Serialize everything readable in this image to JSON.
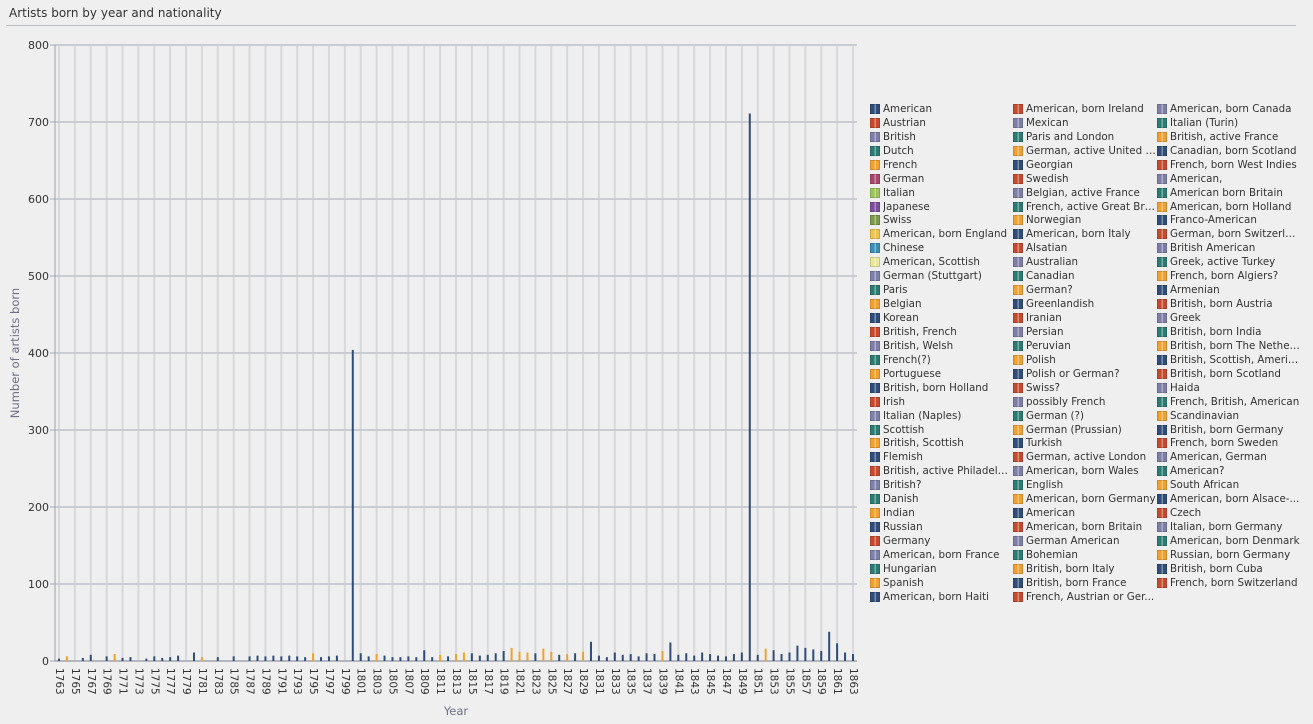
{
  "title": "Artists born by year and nationality",
  "colors": [
    "#2e4d7b",
    "#c9492d",
    "#7e7fa8",
    "#2b7c72",
    "#f3a12d",
    "#2d5a86",
    "#c0452e",
    "#8a8aae",
    "#2f8f7e",
    "#f5a02a"
  ],
  "chart_data": {
    "type": "bar",
    "title": "Artists born by year and nationality",
    "xlabel": "Year",
    "ylabel": "Number of artists born",
    "ylim": [
      0,
      800
    ],
    "yticks": [
      0,
      100,
      200,
      300,
      400,
      500,
      600,
      700,
      800
    ],
    "x_start": 1763,
    "x_end": 1863,
    "xtick_labels": [
      "1763",
      "1765",
      "1767",
      "1769",
      "1771",
      "1773",
      "1775",
      "1777",
      "1779",
      "1781",
      "1783",
      "1785",
      "1787",
      "1789",
      "1791",
      "1793",
      "1795",
      "1797",
      "1799",
      "1801",
      "1803",
      "1805",
      "1807",
      "1809",
      "1811",
      "1813",
      "1815",
      "1817",
      "1819",
      "1821",
      "1823",
      "1825",
      "1827",
      "1829",
      "1831",
      "1833",
      "1835",
      "1837",
      "1839",
      "1841",
      "1843",
      "1845",
      "1847",
      "1849",
      "1851",
      "1853",
      "1855",
      "1857",
      "1859",
      "1861",
      "1863"
    ],
    "bars": [
      {
        "year": 1763,
        "series": "American",
        "value": 3
      },
      {
        "year": 1764,
        "series": "French",
        "value": 6
      },
      {
        "year": 1766,
        "series": "American",
        "value": 4
      },
      {
        "year": 1767,
        "series": "American",
        "value": 8
      },
      {
        "year": 1769,
        "series": "American",
        "value": 6
      },
      {
        "year": 1770,
        "series": "French",
        "value": 9
      },
      {
        "year": 1771,
        "series": "American",
        "value": 4
      },
      {
        "year": 1772,
        "series": "American",
        "value": 5
      },
      {
        "year": 1774,
        "series": "American",
        "value": 3
      },
      {
        "year": 1775,
        "series": "American",
        "value": 6
      },
      {
        "year": 1776,
        "series": "American",
        "value": 4
      },
      {
        "year": 1777,
        "series": "American",
        "value": 5
      },
      {
        "year": 1778,
        "series": "American",
        "value": 7
      },
      {
        "year": 1780,
        "series": "American",
        "value": 11
      },
      {
        "year": 1781,
        "series": "French",
        "value": 5
      },
      {
        "year": 1783,
        "series": "American",
        "value": 5
      },
      {
        "year": 1785,
        "series": "American",
        "value": 6
      },
      {
        "year": 1787,
        "series": "American",
        "value": 6
      },
      {
        "year": 1788,
        "series": "American",
        "value": 7
      },
      {
        "year": 1789,
        "series": "American",
        "value": 6
      },
      {
        "year": 1790,
        "series": "American",
        "value": 7
      },
      {
        "year": 1791,
        "series": "American",
        "value": 6
      },
      {
        "year": 1792,
        "series": "American",
        "value": 7
      },
      {
        "year": 1793,
        "series": "American",
        "value": 6
      },
      {
        "year": 1794,
        "series": "American",
        "value": 5
      },
      {
        "year": 1795,
        "series": "French",
        "value": 10
      },
      {
        "year": 1796,
        "series": "American",
        "value": 5
      },
      {
        "year": 1797,
        "series": "American",
        "value": 6
      },
      {
        "year": 1798,
        "series": "American",
        "value": 7
      },
      {
        "year": 1800,
        "series": "American",
        "value": 404
      },
      {
        "year": 1801,
        "series": "American",
        "value": 10
      },
      {
        "year": 1802,
        "series": "American",
        "value": 6
      },
      {
        "year": 1803,
        "series": "French",
        "value": 9
      },
      {
        "year": 1804,
        "series": "American",
        "value": 7
      },
      {
        "year": 1805,
        "series": "American",
        "value": 5
      },
      {
        "year": 1806,
        "series": "American",
        "value": 5
      },
      {
        "year": 1807,
        "series": "American",
        "value": 6
      },
      {
        "year": 1808,
        "series": "American",
        "value": 5
      },
      {
        "year": 1809,
        "series": "American",
        "value": 14
      },
      {
        "year": 1810,
        "series": "American",
        "value": 5
      },
      {
        "year": 1811,
        "series": "French",
        "value": 8
      },
      {
        "year": 1812,
        "series": "American",
        "value": 6
      },
      {
        "year": 1813,
        "series": "French",
        "value": 9
      },
      {
        "year": 1814,
        "series": "French",
        "value": 11
      },
      {
        "year": 1815,
        "series": "American",
        "value": 10
      },
      {
        "year": 1816,
        "series": "American",
        "value": 7
      },
      {
        "year": 1817,
        "series": "American",
        "value": 8
      },
      {
        "year": 1818,
        "series": "American",
        "value": 10
      },
      {
        "year": 1819,
        "series": "American",
        "value": 13
      },
      {
        "year": 1820,
        "series": "French",
        "value": 17
      },
      {
        "year": 1821,
        "series": "French",
        "value": 12
      },
      {
        "year": 1822,
        "series": "French",
        "value": 11
      },
      {
        "year": 1823,
        "series": "American",
        "value": 10
      },
      {
        "year": 1824,
        "series": "French",
        "value": 16
      },
      {
        "year": 1825,
        "series": "French",
        "value": 12
      },
      {
        "year": 1826,
        "series": "American",
        "value": 8
      },
      {
        "year": 1827,
        "series": "French",
        "value": 9
      },
      {
        "year": 1828,
        "series": "American",
        "value": 10
      },
      {
        "year": 1829,
        "series": "French",
        "value": 12
      },
      {
        "year": 1830,
        "series": "American",
        "value": 25
      },
      {
        "year": 1831,
        "series": "American",
        "value": 7
      },
      {
        "year": 1832,
        "series": "American",
        "value": 5
      },
      {
        "year": 1833,
        "series": "American",
        "value": 11
      },
      {
        "year": 1834,
        "series": "American",
        "value": 8
      },
      {
        "year": 1835,
        "series": "American",
        "value": 9
      },
      {
        "year": 1836,
        "series": "American",
        "value": 6
      },
      {
        "year": 1837,
        "series": "American",
        "value": 10
      },
      {
        "year": 1838,
        "series": "American",
        "value": 9
      },
      {
        "year": 1839,
        "series": "French",
        "value": 13
      },
      {
        "year": 1840,
        "series": "American",
        "value": 24
      },
      {
        "year": 1841,
        "series": "American",
        "value": 8
      },
      {
        "year": 1842,
        "series": "American",
        "value": 10
      },
      {
        "year": 1843,
        "series": "American",
        "value": 7
      },
      {
        "year": 1844,
        "series": "American",
        "value": 11
      },
      {
        "year": 1845,
        "series": "American",
        "value": 9
      },
      {
        "year": 1846,
        "series": "American",
        "value": 7
      },
      {
        "year": 1847,
        "series": "American",
        "value": 6
      },
      {
        "year": 1848,
        "series": "American",
        "value": 9
      },
      {
        "year": 1849,
        "series": "American",
        "value": 11
      },
      {
        "year": 1850,
        "series": "American",
        "value": 711
      },
      {
        "year": 1851,
        "series": "American",
        "value": 8
      },
      {
        "year": 1852,
        "series": "French",
        "value": 16
      },
      {
        "year": 1853,
        "series": "American",
        "value": 14
      },
      {
        "year": 1854,
        "series": "American",
        "value": 9
      },
      {
        "year": 1855,
        "series": "American",
        "value": 11
      },
      {
        "year": 1856,
        "series": "American",
        "value": 20
      },
      {
        "year": 1857,
        "series": "American",
        "value": 17
      },
      {
        "year": 1858,
        "series": "American",
        "value": 15
      },
      {
        "year": 1859,
        "series": "American",
        "value": 13
      },
      {
        "year": 1860,
        "series": "American",
        "value": 38
      },
      {
        "year": 1861,
        "series": "American",
        "value": 23
      },
      {
        "year": 1862,
        "series": "American",
        "value": 11
      },
      {
        "year": 1863,
        "series": "American",
        "value": 9
      }
    ]
  },
  "legend": [
    "American",
    "Austrian",
    "British",
    "Dutch",
    "French",
    "German",
    "Italian",
    "Japanese",
    "Swiss",
    "American, born England",
    "Chinese",
    "American, Scottish",
    "German (Stuttgart)",
    "Paris",
    "Belgian",
    "Korean",
    "British, French",
    "British, Welsh",
    "French(?)",
    "Portuguese",
    "British, born Holland",
    "Irish",
    "Italian (Naples)",
    "Scottish",
    "British, Scottish",
    "Flemish",
    "British, active Philadelphia",
    "British?",
    "Danish",
    "Indian",
    "Russian",
    "Germany",
    "American, born France",
    "Hungarian",
    "Spanish",
    "American, born Haiti",
    "American, born Ireland",
    "Mexican",
    "Paris and London",
    "German, active United S...",
    "Georgian",
    "Swedish",
    "Belgian, active France",
    "French, active Great Brit...",
    "Norwegian",
    "American, born Italy",
    "Alsatian",
    "Australian",
    "Canadian",
    "German?",
    "Greenlandish",
    "Iranian",
    "Persian",
    "Peruvian",
    "Polish",
    "Polish or German?",
    "Swiss?",
    "possibly French",
    "German (?)",
    "German (Prussian)",
    "Turkish",
    "German, active London",
    "American, born Wales",
    "English",
    "American, born Germany",
    "American",
    "American, born Britain",
    "German American",
    "Bohemian",
    "British, born Italy",
    "British, born France",
    "French, Austrian or Ger...",
    "American, born Canada",
    "Italian (Turin)",
    "British, active France",
    "Canadian, born Scotland",
    "French, born West Indies",
    "American,",
    "American born Britain",
    "American, born Holland",
    "Franco-American",
    "German, born Switzerland",
    "British American",
    "Greek, active Turkey",
    "French, born Algiers?",
    "Armenian",
    "British, born Austria",
    "Greek",
    "British, born India",
    "British, born The Netherl...",
    "British, Scottish, American",
    "British, born Scotland",
    "Haida",
    "French, British, American",
    "Scandinavian",
    "British, born Germany",
    "French, born Sweden",
    "American, German",
    "American?",
    "South African",
    "American, born Alsace-...",
    "Czech",
    "Italian, born Germany",
    "American, born Denmark",
    "Russian, born Germany",
    "British, born Cuba",
    "French, born Switzerland"
  ],
  "legend_colors": [
    "#2e4d7b",
    "#c9492d",
    "#7e7fa8",
    "#2b7c72",
    "#f3a12d",
    "#a8466b",
    "#9cc45a",
    "#7a4e9c",
    "#7c9a4a",
    "#f2c34a",
    "#3a8fb5",
    "#e9e79a",
    "#7e7fa8",
    "#2b7c72",
    "#f3a12d",
    "#2e4d7b",
    "#c9492d",
    "#7e7fa8",
    "#2b7c72",
    "#f3a12d",
    "#2e4d7b",
    "#c9492d",
    "#7e7fa8",
    "#2b7c72",
    "#f3a12d",
    "#2e4d7b",
    "#c9492d",
    "#7e7fa8",
    "#2b7c72",
    "#f3a12d",
    "#2e4d7b",
    "#c9492d",
    "#7e7fa8",
    "#2b7c72",
    "#f3a12d",
    "#2e4d7b",
    "#c9492d",
    "#7e7fa8",
    "#2b7c72",
    "#f3a12d",
    "#2e4d7b",
    "#c9492d",
    "#7e7fa8",
    "#2b7c72",
    "#f3a12d",
    "#2e4d7b",
    "#c9492d",
    "#7e7fa8",
    "#2b7c72",
    "#f3a12d",
    "#2e4d7b",
    "#c9492d",
    "#7e7fa8",
    "#2b7c72",
    "#f3a12d",
    "#2e4d7b",
    "#c9492d",
    "#7e7fa8",
    "#2b7c72",
    "#f3a12d",
    "#2e4d7b",
    "#c9492d",
    "#7e7fa8",
    "#2b7c72",
    "#f3a12d",
    "#2e4d7b",
    "#c9492d",
    "#7e7fa8",
    "#2b7c72",
    "#f3a12d",
    "#2e4d7b",
    "#c9492d",
    "#7e7fa8",
    "#2b7c72",
    "#f3a12d",
    "#2e4d7b",
    "#c9492d",
    "#7e7fa8",
    "#2b7c72",
    "#f3a12d",
    "#2e4d7b",
    "#c9492d",
    "#7e7fa8",
    "#2b7c72",
    "#f3a12d",
    "#2e4d7b",
    "#c9492d",
    "#7e7fa8",
    "#2b7c72",
    "#f3a12d",
    "#2e4d7b",
    "#c9492d",
    "#7e7fa8",
    "#2b7c72",
    "#f3a12d",
    "#2e4d7b",
    "#c9492d",
    "#7e7fa8",
    "#2b7c72",
    "#f3a12d",
    "#2e4d7b",
    "#c9492d",
    "#7e7fa8",
    "#2b7c72",
    "#f3a12d",
    "#2e4d7b",
    "#c9492d"
  ]
}
